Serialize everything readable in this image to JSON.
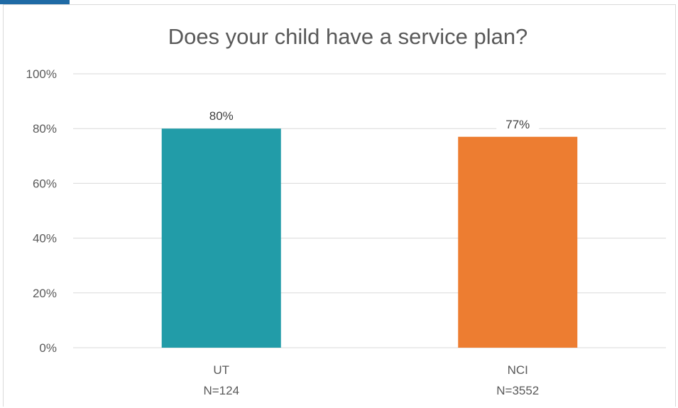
{
  "chart_data": {
    "type": "bar",
    "title": "Does your child have a service plan?",
    "categories": [
      {
        "name": "UT",
        "n_label": "N=124"
      },
      {
        "name": "NCI",
        "n_label": "N=3552"
      }
    ],
    "values": [
      80,
      77
    ],
    "data_labels": [
      "80%",
      "77%"
    ],
    "colors": [
      "#229ca8",
      "#ed7d31"
    ],
    "y_ticks": [
      0,
      20,
      40,
      60,
      80,
      100
    ],
    "y_tick_labels": [
      "0%",
      "20%",
      "40%",
      "60%",
      "80%",
      "100%"
    ],
    "ylim": [
      0,
      100
    ],
    "grid": true,
    "legend": "none",
    "xlabel": "",
    "ylabel": ""
  }
}
